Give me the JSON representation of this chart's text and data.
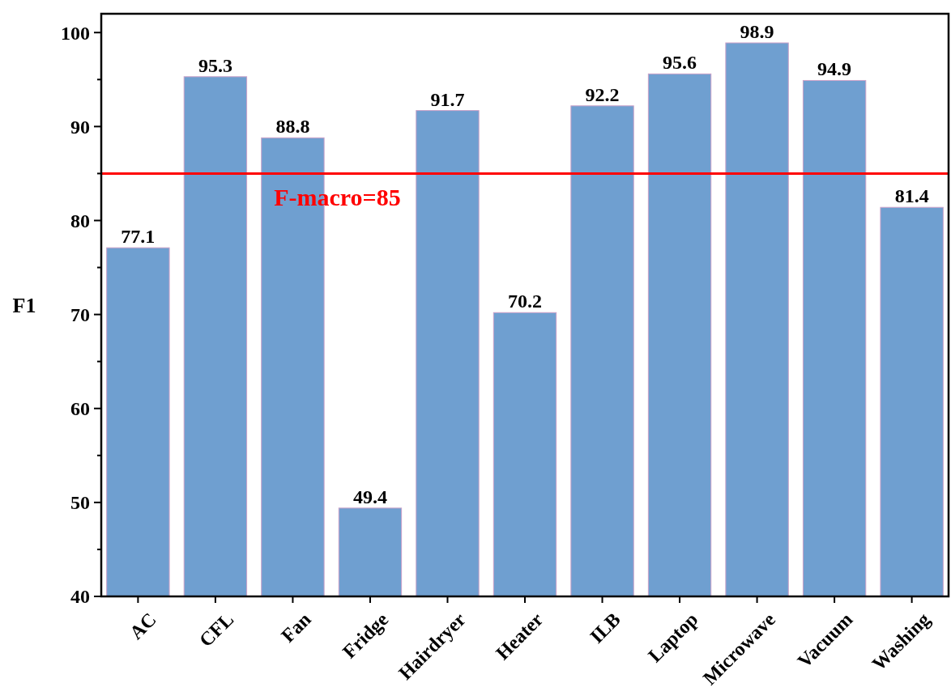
{
  "chart_data": {
    "type": "bar",
    "ylabel": "F1",
    "categories": [
      "AC",
      "CFL",
      "Fan",
      "Fridge",
      "Hairdryer",
      "Heater",
      "ILB",
      "Laptop",
      "Microwave",
      "Vacuum",
      "Washing"
    ],
    "values": [
      77.1,
      95.3,
      88.8,
      49.4,
      91.7,
      70.2,
      92.2,
      95.6,
      98.9,
      94.9,
      81.4
    ],
    "color": "#6f9fd0",
    "data_labels": true,
    "ylim": [
      40,
      102
    ],
    "yticks": [
      40,
      {
        "value": 45,
        "label": null
      },
      50,
      {
        "value": 55,
        "label": null
      },
      60,
      {
        "value": 65,
        "label": null
      },
      70,
      {
        "value": 75,
        "label": null
      },
      80,
      {
        "value": 85,
        "label": null
      },
      90,
      {
        "value": 95,
        "label": null
      },
      100
    ],
    "ref_lines": [
      {
        "axis": "y",
        "value": 85,
        "label": "F-macro=85",
        "color": "#ff0000"
      }
    ],
    "grid": false
  }
}
